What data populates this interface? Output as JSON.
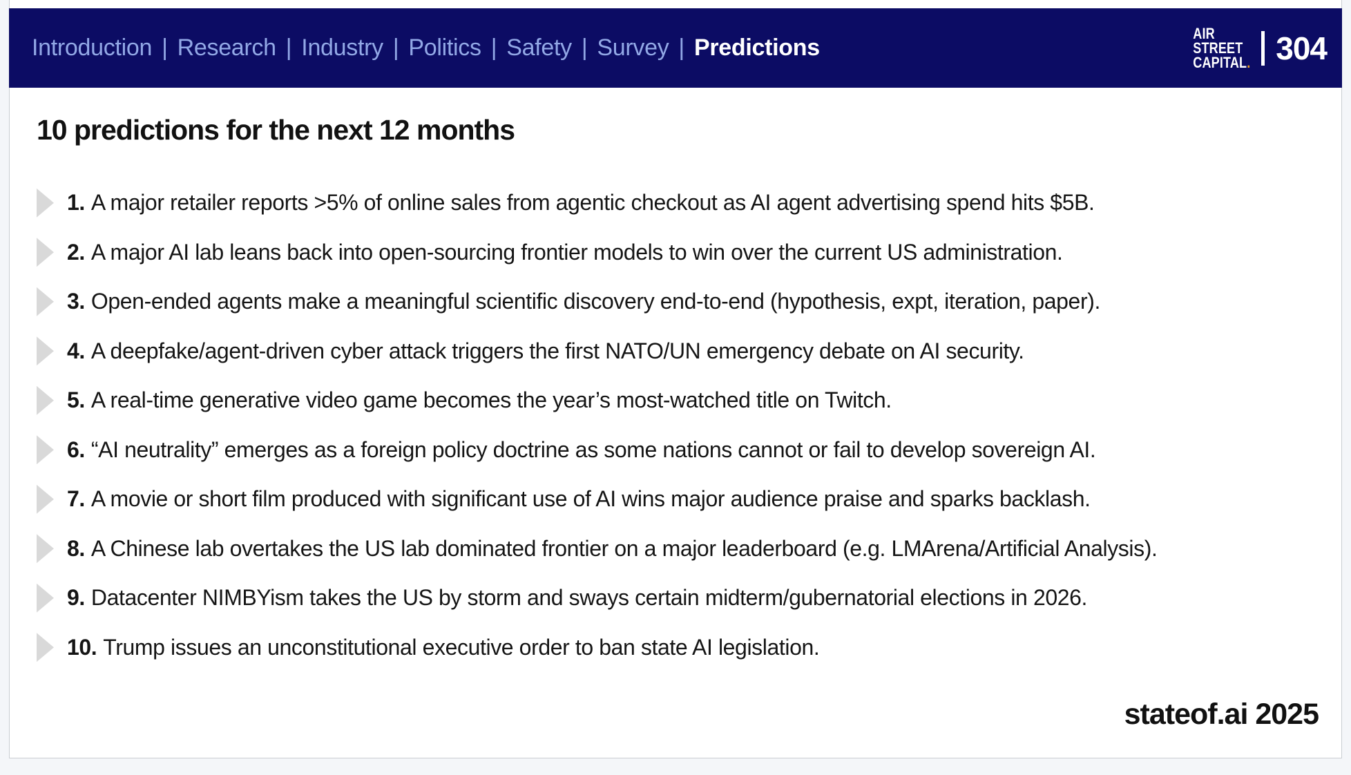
{
  "header": {
    "nav_items": [
      "Introduction",
      "Research",
      "Industry",
      "Politics",
      "Safety",
      "Survey"
    ],
    "separator": "|",
    "active_item": "Predictions",
    "logo_lines": [
      "AIR",
      "STREET",
      "CAPITAL"
    ],
    "logo_dot": ".",
    "page_number": "304",
    "colors": {
      "bar_bg": "#0c0c64",
      "nav_text": "#92a8e6",
      "active_text": "#ffffff",
      "logo_dot": "#f5a21b"
    }
  },
  "main": {
    "title": "10 predictions for the next 12 months",
    "predictions": [
      {
        "num": "1.",
        "text": "A major retailer reports >5% of online sales from agentic checkout as AI agent advertising spend hits $5B."
      },
      {
        "num": "2.",
        "text": "A major AI lab leans back into open-sourcing frontier models to win over the current US administration."
      },
      {
        "num": "3.",
        "text": "Open-ended agents make a meaningful scientific discovery end-to-end (hypothesis, expt, iteration, paper)."
      },
      {
        "num": "4.",
        "text": "A deepfake/agent-driven cyber attack triggers the first NATO/UN emergency debate on AI security."
      },
      {
        "num": "5.",
        "text": "A real-time generative video game becomes the year’s most-watched title on Twitch."
      },
      {
        "num": "6.",
        "text": "“AI neutrality” emerges as a foreign policy doctrine as some nations cannot or fail to develop sovereign AI."
      },
      {
        "num": "7.",
        "text": "A movie or short film produced with significant use of AI wins major audience praise and sparks backlash."
      },
      {
        "num": "8.",
        "text": "A Chinese lab overtakes the US lab dominated frontier on a major leaderboard (e.g. LMArena/Artificial Analysis)."
      },
      {
        "num": "9.",
        "text": "Datacenter NIMBYism takes the US by storm and sways certain midterm/gubernatorial elections in 2026."
      },
      {
        "num": "10.",
        "text": "Trump issues an unconstitutional executive order to ban state AI legislation."
      }
    ],
    "footer": "stateof.ai 2025"
  }
}
